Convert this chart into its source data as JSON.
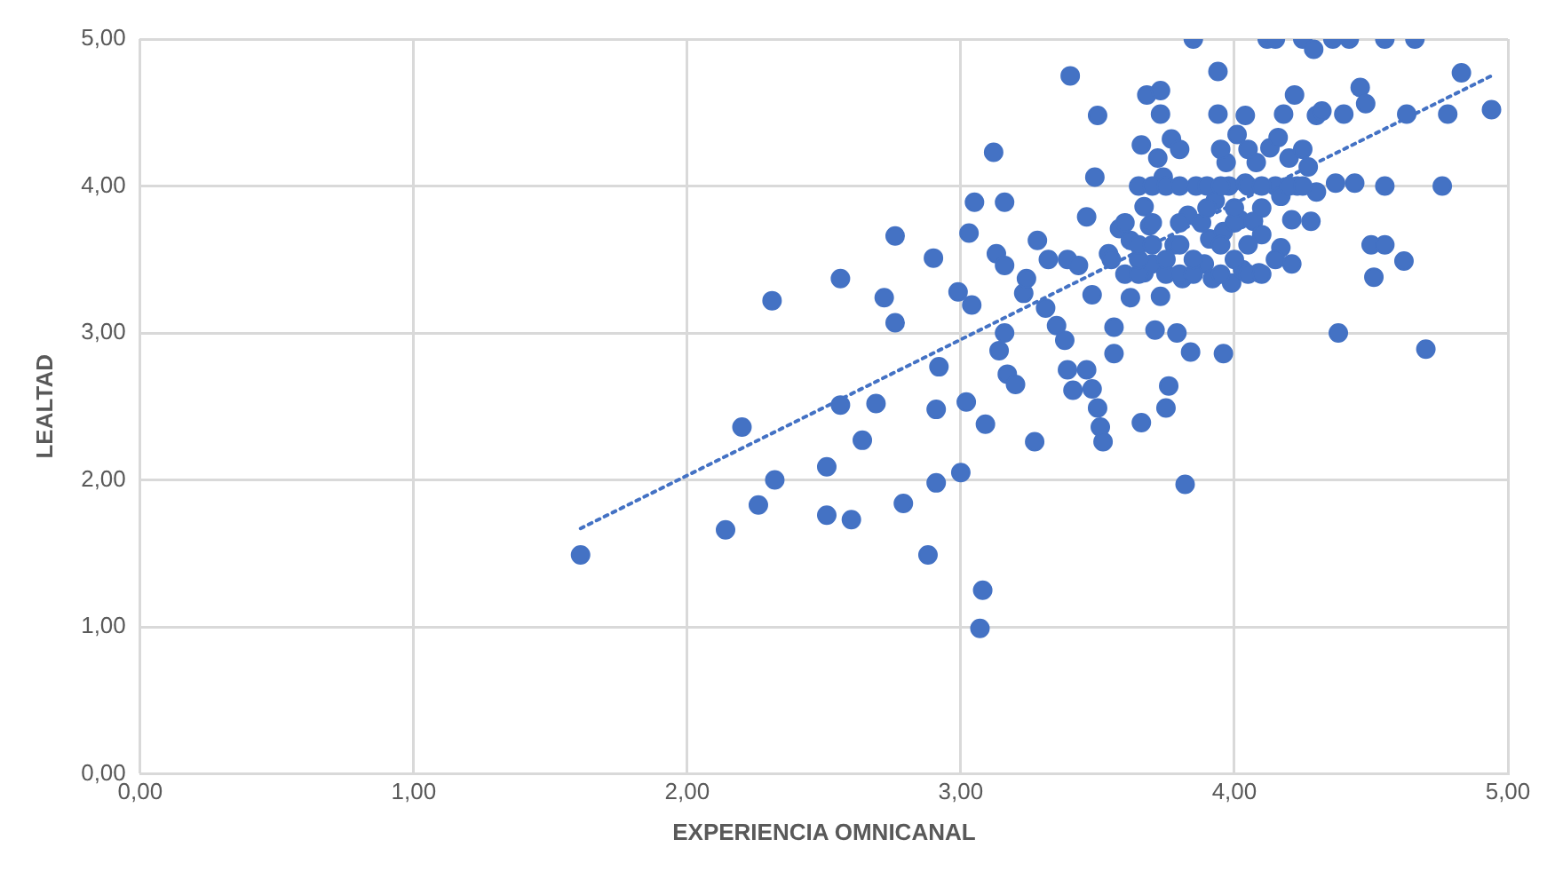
{
  "chart_data": {
    "type": "scatter",
    "xlabel": "EXPERIENCIA OMNICANAL",
    "ylabel": "LEALTAD",
    "grid": true,
    "legend": false,
    "marker": "circle",
    "xlim": [
      0,
      5
    ],
    "ylim": [
      0,
      5
    ],
    "xticks": [
      {
        "value": 0,
        "label": "0,00"
      },
      {
        "value": 1,
        "label": "1,00"
      },
      {
        "value": 2,
        "label": "2,00"
      },
      {
        "value": 3,
        "label": "3,00"
      },
      {
        "value": 4,
        "label": "4,00"
      },
      {
        "value": 5,
        "label": "5,00"
      }
    ],
    "yticks": [
      {
        "value": 0,
        "label": "0,00"
      },
      {
        "value": 1,
        "label": "1,00"
      },
      {
        "value": 2,
        "label": "2,00"
      },
      {
        "value": 3,
        "label": "3,00"
      },
      {
        "value": 4,
        "label": "4,00"
      },
      {
        "value": 5,
        "label": "5,00"
      }
    ],
    "series": [
      {
        "color": "#4472c4",
        "x": [
          1.61,
          2.14,
          2.2,
          2.26,
          2.32,
          2.31,
          2.51,
          2.51,
          2.56,
          2.6,
          2.56,
          2.64,
          2.69,
          2.72,
          2.76,
          2.76,
          2.79,
          2.88,
          2.91,
          2.91,
          2.92,
          2.9,
          2.99,
          3.0,
          3.02,
          3.03,
          3.05,
          3.04,
          3.08,
          3.07,
          3.09,
          3.12,
          3.14,
          3.16,
          3.13,
          3.16,
          3.16,
          3.17,
          3.2,
          3.23,
          3.24,
          3.27,
          3.28,
          3.31,
          3.32,
          3.35,
          3.38,
          3.39,
          3.39,
          3.4,
          3.41,
          3.43,
          3.46,
          3.46,
          3.48,
          3.49,
          3.5,
          3.5,
          3.48,
          3.51,
          3.52,
          3.54,
          3.56,
          3.56,
          3.58,
          3.62,
          3.62,
          3.66,
          3.66,
          3.67,
          3.67,
          3.68,
          3.69,
          3.7,
          3.71,
          3.73,
          3.72,
          3.73,
          3.73,
          3.74,
          3.75,
          3.76,
          3.77,
          3.78,
          3.79,
          3.81,
          3.82,
          3.83,
          3.84,
          3.85,
          3.86,
          3.89,
          3.91,
          3.92,
          3.93,
          3.94,
          3.94,
          3.96,
          3.96,
          3.97,
          3.98,
          3.99,
          4.01,
          4.02,
          4.03,
          4.04,
          4.04,
          4.07,
          4.08,
          4.09,
          4.1,
          4.12,
          4.15,
          4.13,
          4.15,
          4.16,
          4.17,
          4.17,
          4.18,
          4.2,
          4.21,
          4.21,
          4.22,
          4.23,
          4.25,
          4.27,
          4.28,
          4.29,
          4.3,
          4.3,
          4.32,
          4.36,
          4.37,
          4.38,
          4.4,
          4.42,
          4.44,
          4.46,
          4.48,
          4.5,
          4.51,
          4.55,
          4.55,
          4.55,
          4.63,
          4.62,
          4.66,
          4.7,
          4.76,
          4.78,
          4.83,
          4.94,
          3.65,
          3.7,
          3.75,
          3.8,
          3.9,
          3.95,
          4.05,
          4.1,
          4.2,
          4.25,
          3.6,
          3.65,
          3.75,
          3.8,
          3.85,
          3.95,
          4.05,
          4.1,
          3.55,
          3.65,
          3.75,
          3.85,
          4.0,
          4.15,
          3.65,
          3.7,
          3.8,
          3.95,
          4.05,
          3.6,
          3.7,
          3.8,
          3.88,
          4.0,
          3.8,
          3.95,
          4.05,
          4.25,
          3.9,
          4.0,
          4.1
        ],
        "values": [
          1.49,
          1.66,
          2.36,
          1.83,
          2.0,
          3.22,
          2.09,
          1.76,
          2.51,
          1.73,
          3.37,
          2.27,
          2.52,
          3.24,
          3.07,
          3.66,
          1.84,
          1.49,
          1.98,
          2.48,
          2.77,
          3.51,
          3.28,
          2.05,
          2.53,
          3.68,
          3.89,
          3.19,
          1.25,
          0.99,
          2.38,
          4.23,
          2.88,
          3.89,
          3.54,
          3.46,
          3.0,
          2.72,
          2.65,
          3.27,
          3.37,
          2.26,
          3.63,
          3.17,
          3.5,
          3.05,
          2.95,
          2.75,
          3.5,
          4.75,
          2.61,
          3.46,
          2.75,
          3.79,
          3.26,
          4.06,
          4.48,
          2.49,
          2.62,
          2.36,
          2.26,
          3.54,
          3.04,
          2.86,
          3.71,
          3.24,
          3.63,
          2.39,
          4.28,
          3.86,
          3.41,
          4.62,
          3.73,
          3.47,
          3.02,
          4.49,
          4.19,
          3.25,
          4.65,
          4.06,
          2.49,
          2.64,
          4.32,
          3.6,
          3.0,
          3.37,
          1.97,
          3.8,
          2.87,
          5.0,
          4.0,
          3.47,
          3.64,
          3.37,
          3.9,
          4.78,
          4.49,
          3.69,
          2.86,
          4.16,
          4.0,
          3.34,
          4.35,
          3.77,
          3.43,
          4.02,
          4.48,
          3.76,
          4.16,
          3.41,
          3.67,
          5.0,
          5.0,
          4.26,
          4.0,
          4.33,
          3.58,
          3.93,
          4.49,
          4.19,
          3.77,
          3.47,
          4.62,
          4.0,
          5.0,
          4.13,
          3.76,
          4.93,
          4.48,
          3.96,
          4.51,
          5.0,
          4.02,
          3.0,
          4.49,
          5.0,
          4.02,
          4.67,
          4.56,
          3.6,
          3.38,
          3.6,
          4.0,
          5.0,
          4.49,
          3.49,
          5.0,
          2.89,
          4.0,
          4.49,
          4.77,
          4.52,
          4.0,
          4.0,
          4.0,
          4.0,
          4.0,
          4.0,
          4.0,
          4.0,
          4.0,
          4.0,
          3.4,
          3.4,
          3.4,
          3.4,
          3.4,
          3.4,
          3.4,
          3.4,
          3.5,
          3.5,
          3.5,
          3.5,
          3.5,
          3.5,
          3.6,
          3.6,
          3.6,
          3.6,
          3.6,
          3.75,
          3.75,
          3.75,
          3.75,
          3.75,
          4.25,
          4.25,
          4.25,
          4.25,
          3.85,
          3.85,
          3.85
        ]
      },
      {
        "type": "line",
        "color": "#4472c4",
        "line_style": "dotted",
        "marker": "none",
        "x": [
          1.61,
          4.94
        ],
        "values": [
          1.67,
          4.75
        ]
      }
    ]
  }
}
